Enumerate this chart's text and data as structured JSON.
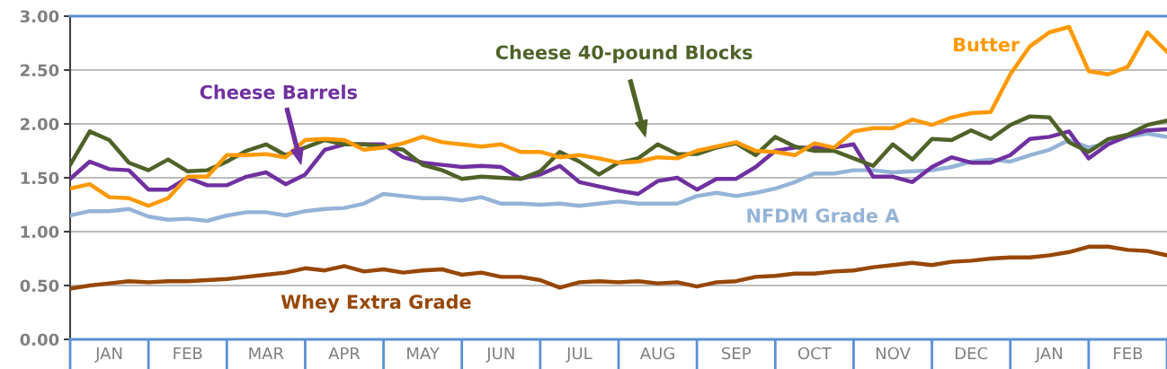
{
  "chart_data": {
    "type": "line",
    "categories": [
      null,
      null,
      "JAN",
      null,
      null,
      null,
      "FEB",
      null,
      null,
      null,
      "MAR",
      null,
      null,
      null,
      "APR",
      null,
      null,
      null,
      "MAY",
      null,
      null,
      null,
      "JUN",
      null,
      null,
      null,
      "JUL",
      null,
      null,
      null,
      "AUG",
      null,
      null,
      null,
      "SEP",
      null,
      null,
      null,
      "OCT",
      null,
      null,
      null,
      "NOV",
      null,
      null,
      null,
      "DEC",
      null,
      null,
      null,
      "JAN",
      null,
      null,
      null,
      "FEB",
      null,
      null
    ],
    "series": [
      {
        "name": "Whey Extra Grade",
        "color": "#974706",
        "values": [
          0.47,
          0.5,
          0.52,
          0.54,
          0.53,
          0.54,
          0.54,
          0.55,
          0.56,
          0.58,
          0.6,
          0.62,
          0.66,
          0.64,
          0.68,
          0.63,
          0.65,
          0.62,
          0.64,
          0.65,
          0.6,
          0.62,
          0.58,
          0.58,
          0.55,
          0.48,
          0.53,
          0.54,
          0.53,
          0.54,
          0.52,
          0.53,
          0.49,
          0.53,
          0.54,
          0.58,
          0.59,
          0.61,
          0.61,
          0.63,
          0.64,
          0.67,
          0.69,
          0.71,
          0.69,
          0.72,
          0.73,
          0.75,
          0.76,
          0.76,
          0.78,
          0.81,
          0.86,
          0.86,
          0.83,
          0.82,
          0.78
        ]
      },
      {
        "name": "NFDM Grade A",
        "color": "#95b3d7",
        "values": [
          1.15,
          1.19,
          1.19,
          1.21,
          1.14,
          1.11,
          1.12,
          1.1,
          1.15,
          1.18,
          1.18,
          1.15,
          1.19,
          1.21,
          1.22,
          1.26,
          1.35,
          1.33,
          1.31,
          1.31,
          1.29,
          1.32,
          1.26,
          1.26,
          1.25,
          1.26,
          1.24,
          1.26,
          1.28,
          1.26,
          1.26,
          1.26,
          1.33,
          1.36,
          1.33,
          1.36,
          1.4,
          1.46,
          1.54,
          1.54,
          1.57,
          1.57,
          1.55,
          1.56,
          1.57,
          1.6,
          1.65,
          1.67,
          1.65,
          1.71,
          1.76,
          1.85,
          1.78,
          1.82,
          1.88,
          1.91,
          1.88
        ]
      },
      {
        "name": "Cheese Barrels",
        "color": "#7030a0",
        "values": [
          1.49,
          1.65,
          1.58,
          1.57,
          1.39,
          1.39,
          1.5,
          1.43,
          1.43,
          1.51,
          1.55,
          1.44,
          1.53,
          1.76,
          1.81,
          1.81,
          1.81,
          1.69,
          1.64,
          1.62,
          1.6,
          1.61,
          1.6,
          1.49,
          1.53,
          1.61,
          1.46,
          1.42,
          1.38,
          1.35,
          1.47,
          1.5,
          1.39,
          1.49,
          1.49,
          1.6,
          1.75,
          1.78,
          1.78,
          1.78,
          1.81,
          1.51,
          1.51,
          1.46,
          1.6,
          1.69,
          1.64,
          1.64,
          1.71,
          1.86,
          1.88,
          1.93,
          1.68,
          1.81,
          1.89,
          1.94,
          1.95
        ]
      },
      {
        "name": "Cheese 40-pound Blocks",
        "color": "#4f6228",
        "values": [
          1.62,
          1.93,
          1.85,
          1.64,
          1.57,
          1.67,
          1.56,
          1.57,
          1.65,
          1.75,
          1.81,
          1.71,
          1.78,
          1.85,
          1.81,
          1.81,
          1.79,
          1.76,
          1.62,
          1.57,
          1.49,
          1.51,
          1.5,
          1.49,
          1.56,
          1.74,
          1.65,
          1.53,
          1.64,
          1.68,
          1.81,
          1.72,
          1.72,
          1.78,
          1.82,
          1.71,
          1.88,
          1.79,
          1.75,
          1.75,
          1.68,
          1.61,
          1.81,
          1.67,
          1.86,
          1.85,
          1.94,
          1.86,
          1.99,
          2.07,
          2.06,
          1.83,
          1.74,
          1.86,
          1.9,
          1.99,
          2.03
        ]
      },
      {
        "name": "Butter",
        "color": "#ff9900",
        "values": [
          1.4,
          1.44,
          1.32,
          1.31,
          1.24,
          1.31,
          1.51,
          1.51,
          1.71,
          1.71,
          1.72,
          1.69,
          1.85,
          1.86,
          1.85,
          1.76,
          1.78,
          1.82,
          1.88,
          1.83,
          1.81,
          1.79,
          1.81,
          1.74,
          1.74,
          1.69,
          1.71,
          1.68,
          1.64,
          1.65,
          1.69,
          1.68,
          1.75,
          1.79,
          1.83,
          1.75,
          1.74,
          1.71,
          1.82,
          1.78,
          1.93,
          1.96,
          1.96,
          2.04,
          1.99,
          2.06,
          2.1,
          2.11,
          2.46,
          2.72,
          2.85,
          2.9,
          2.49,
          2.46,
          2.53,
          2.85,
          2.67
        ]
      }
    ],
    "ylim": [
      0,
      3
    ],
    "yticks": [
      {
        "value": 0,
        "label": "0.00"
      },
      {
        "value": 0.5,
        "label": "0.50"
      },
      {
        "value": 1,
        "label": "1.00"
      },
      {
        "value": 1.5,
        "label": "1.50"
      },
      {
        "value": 2,
        "label": "2.00"
      },
      {
        "value": 2.5,
        "label": "2.50"
      },
      {
        "value": 3,
        "label": "3.00"
      }
    ],
    "grid": "y",
    "legend": false,
    "marker": "none",
    "line_style": "solid"
  }
}
